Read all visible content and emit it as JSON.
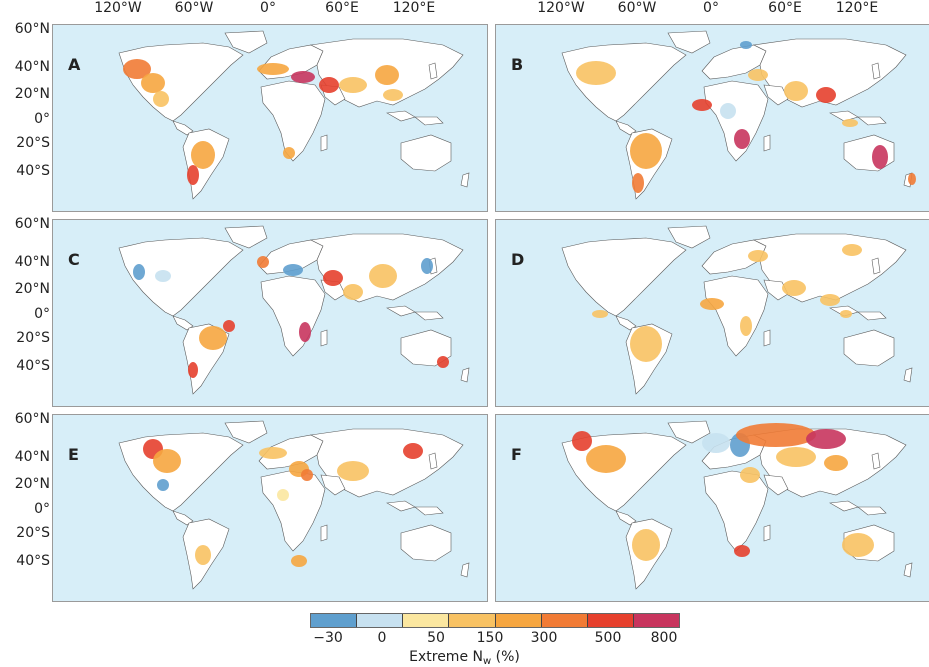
{
  "lon_labels": [
    "120°W",
    "60°W",
    "0°",
    "60°E",
    "120°E"
  ],
  "lat_labels": [
    "60°N",
    "40°N",
    "20°N",
    "0°",
    "20°S",
    "40°S"
  ],
  "panels": [
    {
      "letter": "A"
    },
    {
      "letter": "B"
    },
    {
      "letter": "C"
    },
    {
      "letter": "D"
    },
    {
      "letter": "E"
    },
    {
      "letter": "F"
    }
  ],
  "colorbar": {
    "colors": [
      "#5f9fce",
      "#c7e1f0",
      "#fbe7a0",
      "#f8c263",
      "#f6a640",
      "#f17b35",
      "#e6402d",
      "#c8355e"
    ],
    "ticks": [
      "−30",
      "0",
      "50",
      "150",
      "300",
      "500",
      "800"
    ],
    "title": "Extreme N",
    "title_sub": "w",
    "title_unit": "(%)"
  }
}
